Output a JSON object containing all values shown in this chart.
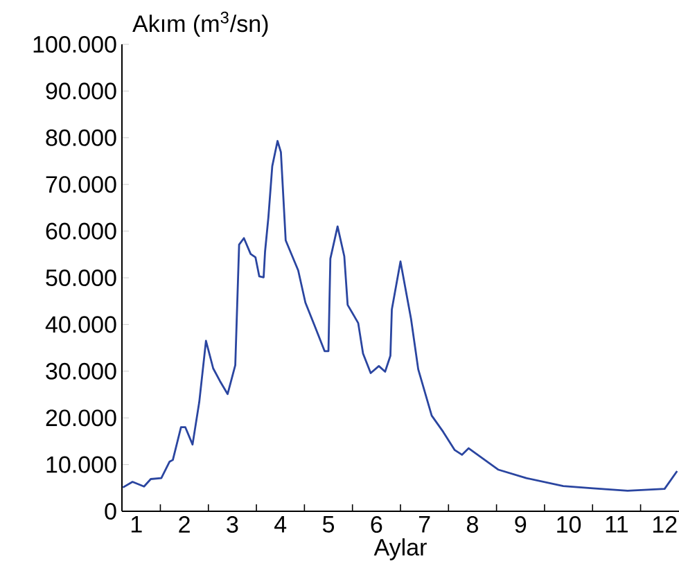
{
  "chart_data": {
    "type": "line",
    "ylabel": "Akım (m$^{3}$/sn)",
    "xlabel": "Aylar",
    "xlim": [
      0.2,
      11.8
    ],
    "xticks": [
      {
        "value": 0.5,
        "label": "1"
      },
      {
        "value": 1.5,
        "label": "2"
      },
      {
        "value": 2.5,
        "label": "3"
      },
      {
        "value": 3.5,
        "label": "4"
      },
      {
        "value": 4.5,
        "label": "5"
      },
      {
        "value": 5.5,
        "label": "6"
      },
      {
        "value": 6.5,
        "label": "7"
      },
      {
        "value": 7.5,
        "label": "8"
      },
      {
        "value": 8.5,
        "label": "9"
      },
      {
        "value": 9.5,
        "label": "10"
      },
      {
        "value": 10.5,
        "label": "11"
      },
      {
        "value": 11.5,
        "label": "12"
      },
      {
        "value": 1,
        "label": null
      },
      {
        "value": 2,
        "label": null
      },
      {
        "value": 3,
        "label": null
      },
      {
        "value": 4,
        "label": null
      },
      {
        "value": 5,
        "label": null
      },
      {
        "value": 6,
        "label": null
      },
      {
        "value": 7,
        "label": null
      },
      {
        "value": 8,
        "label": null
      },
      {
        "value": 9,
        "label": null
      },
      {
        "value": 10,
        "label": null
      },
      {
        "value": 11,
        "label": null
      }
    ],
    "ylim": [
      0,
      100000
    ],
    "yticks": [
      0,
      {
        "value": 10000,
        "label": "10.000"
      },
      {
        "value": 20000,
        "label": "20.000"
      },
      {
        "value": 30000,
        "label": "30.000"
      },
      {
        "value": 40000,
        "label": "40.000"
      },
      {
        "value": 50000,
        "label": "50.000"
      },
      {
        "value": 60000,
        "label": "60.000"
      },
      {
        "value": 70000,
        "label": "70.000"
      },
      {
        "value": 80000,
        "label": "80.000"
      },
      {
        "value": 90000,
        "label": "90.000"
      },
      {
        "value": 100000,
        "label": "100.000"
      }
    ],
    "grid": false,
    "marker": "none",
    "line_style": "solid",
    "series": [
      {
        "color": "#2a45a0",
        "x": [
          0.22,
          0.42,
          0.66,
          0.8,
          1.02,
          1.19,
          1.26,
          1.43,
          1.52,
          1.67,
          1.81,
          1.95,
          2.1,
          2.24,
          2.4,
          2.56,
          2.64,
          2.74,
          2.88,
          2.98,
          3.06,
          3.15,
          3.18,
          3.25,
          3.33,
          3.44,
          3.51,
          3.61,
          3.87,
          4.02,
          4.21,
          4.42,
          4.5,
          4.54,
          4.69,
          4.83,
          4.9,
          5.12,
          5.22,
          5.38,
          5.55,
          5.68,
          5.79,
          5.82,
          6.0,
          6.22,
          6.37,
          6.65,
          6.89,
          7.13,
          7.28,
          7.42,
          8.04,
          8.62,
          9.39,
          10.01,
          10.73,
          11.5,
          11.76
        ],
        "values": [
          5100,
          6300,
          5300,
          6900,
          7100,
          10600,
          11000,
          18000,
          18000,
          14300,
          23400,
          36500,
          30600,
          27900,
          25100,
          31300,
          57100,
          58500,
          55100,
          54400,
          50300,
          50100,
          55600,
          63000,
          73900,
          79300,
          76900,
          58000,
          51600,
          44700,
          39800,
          34300,
          34300,
          54100,
          61000,
          54600,
          44200,
          40300,
          33800,
          29600,
          31100,
          29900,
          33300,
          43200,
          53500,
          41200,
          30400,
          20500,
          17000,
          13100,
          12100,
          13500,
          8900,
          7100,
          5400,
          4900,
          4400,
          4800,
          8600
        ]
      }
    ]
  }
}
